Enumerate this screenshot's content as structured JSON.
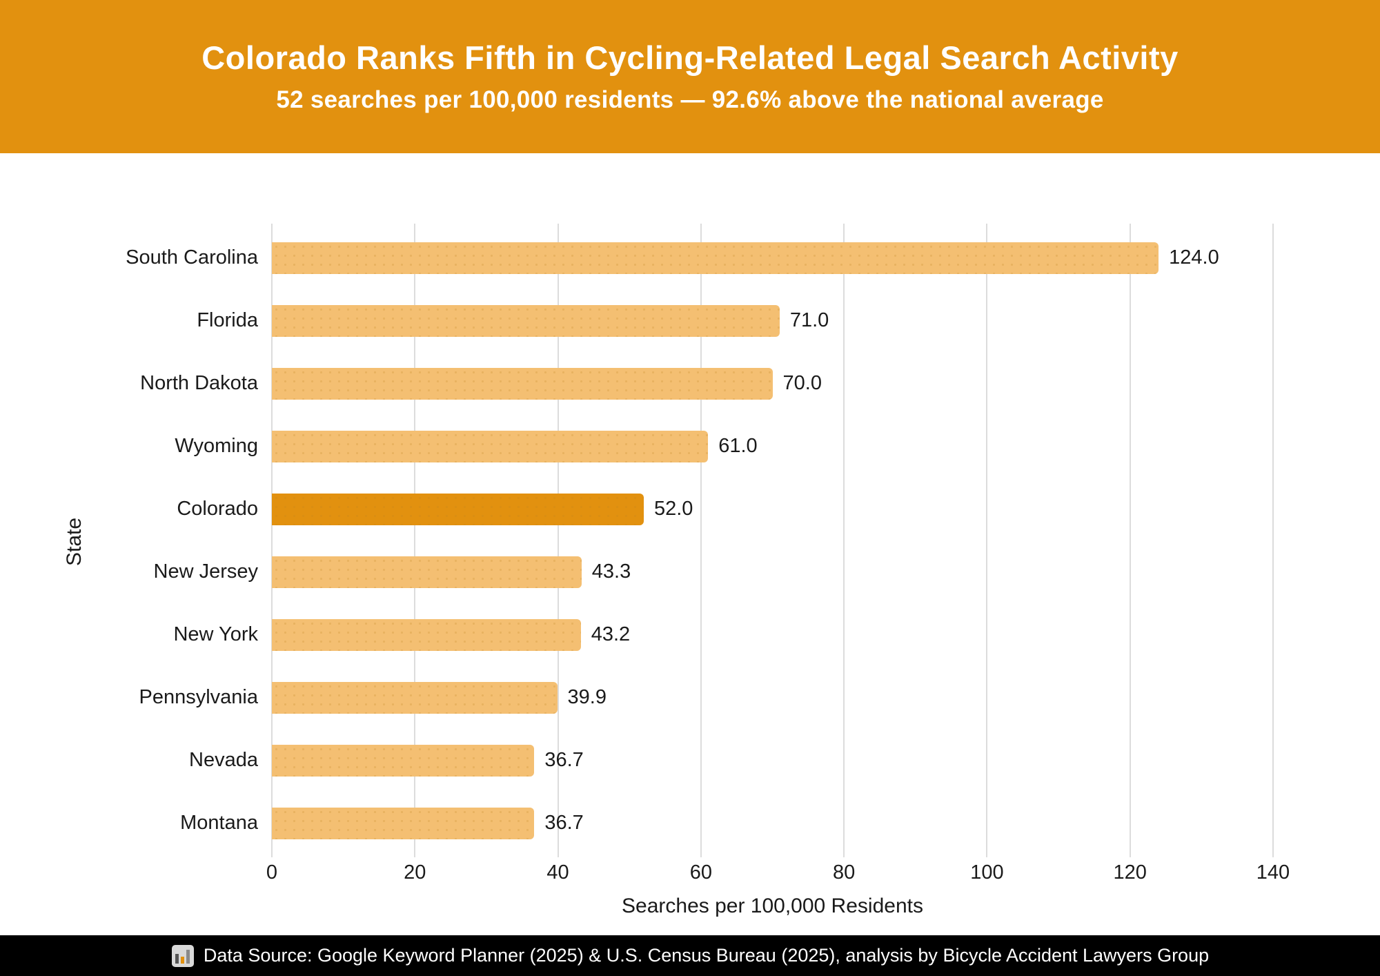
{
  "header": {
    "title": "Colorado Ranks Fifth in Cycling-Related Legal Search Activity",
    "subtitle": "52 searches per 100,000 residents — 92.6% above the national average",
    "bg_color": "#E2910F",
    "text_color": "#FFFFFF"
  },
  "chart_data": {
    "type": "bar",
    "orientation": "horizontal",
    "categories": [
      "South Carolina",
      "Florida",
      "North Dakota",
      "Wyoming",
      "Colorado",
      "New Jersey",
      "New York",
      "Pennsylvania",
      "Nevada",
      "Montana"
    ],
    "values": [
      124.0,
      71.0,
      70.0,
      61.0,
      52.0,
      43.3,
      43.2,
      39.9,
      36.7,
      36.7
    ],
    "value_labels": [
      "124.0",
      "71.0",
      "70.0",
      "61.0",
      "52.0",
      "43.3",
      "43.2",
      "39.9",
      "36.7",
      "36.7"
    ],
    "highlight_category": "Colorado",
    "xlabel": "Searches per 100,000 Residents",
    "ylabel": "State",
    "xlim": [
      0,
      140
    ],
    "xticks": [
      0,
      20,
      40,
      60,
      80,
      100,
      120,
      140
    ],
    "grid": "vertical",
    "legend": "none",
    "colors": {
      "bar": "#F4BF72",
      "highlight": "#E2910F",
      "gridline": "#DCDCDC",
      "label_text": "#1A1A1A"
    }
  },
  "footer": {
    "icon": "bar-chart",
    "text": "Data Source: Google Keyword Planner (2025) & U.S. Census Bureau (2025), analysis by Bicycle Accident Lawyers Group",
    "bg_color": "#000000"
  }
}
